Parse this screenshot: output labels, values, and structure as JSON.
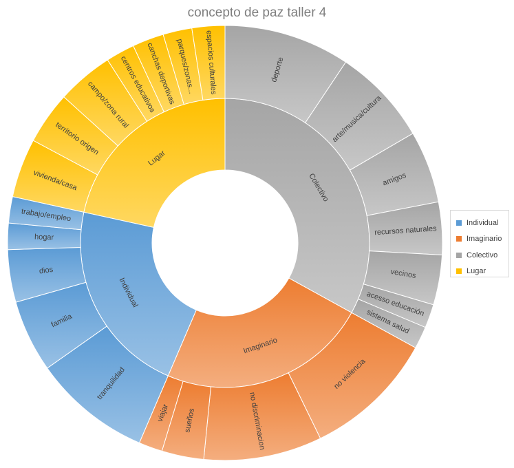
{
  "chart_data": {
    "type": "sunburst",
    "title": "concepto de paz taller 4",
    "legend_position": "right",
    "categories": [
      {
        "name": "Colectivo",
        "color": "#a5a5a5",
        "children": [
          {
            "name": "deporte",
            "value": 9.6
          },
          {
            "name": "arte/musica/cultura",
            "value": 7.4
          },
          {
            "name": "amigos",
            "value": 5.5
          },
          {
            "name": "recursos naturales",
            "value": 4.0
          },
          {
            "name": "vecinos",
            "value": 3.8
          },
          {
            "name": "acesso educación",
            "value": 1.8
          },
          {
            "name": "sistema salud",
            "value": 1.7
          }
        ]
      },
      {
        "name": "Imaginario",
        "color": "#ed7d31",
        "children": [
          {
            "name": "no violencia",
            "value": 10.0
          },
          {
            "name": "no discriminacion",
            "value": 9.0
          },
          {
            "name": "sueños",
            "value": 3.2
          },
          {
            "name": "viajar",
            "value": 1.8
          }
        ]
      },
      {
        "name": "Individual",
        "color": "#5b9bd5",
        "children": [
          {
            "name": "tranquilidad",
            "value": 9.0
          },
          {
            "name": "familia",
            "value": 5.5
          },
          {
            "name": "dios",
            "value": 4.0
          },
          {
            "name": "hogar",
            "value": 2.0
          },
          {
            "name": "trabajo/empleo",
            "value": 2.0
          }
        ]
      },
      {
        "name": "Lugar",
        "color": "#ffc000",
        "children": [
          {
            "name": "vivienda/casa",
            "value": 4.5
          },
          {
            "name": "territorio origen",
            "value": 4.0
          },
          {
            "name": "campo/zona rural",
            "value": 4.3
          },
          {
            "name": "centros educativos",
            "value": 2.2
          },
          {
            "name": "canchas deportivas",
            "value": 2.4
          },
          {
            "name": "parques/zonas...",
            "value": 2.2
          },
          {
            "name": "espacios culturales",
            "value": 2.5
          }
        ]
      }
    ]
  }
}
